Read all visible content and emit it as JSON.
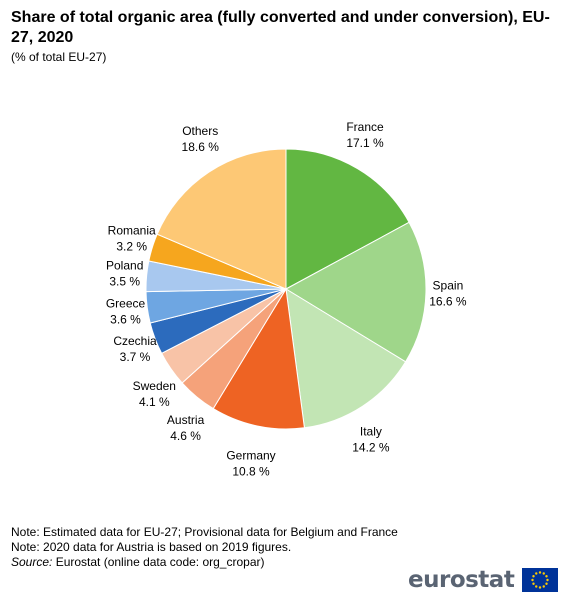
{
  "header": {
    "title": "Share of total organic area (fully converted and under conversion), EU-27, 2020",
    "subtitle": "(% of total EU-27)"
  },
  "chart_data": {
    "type": "pie",
    "title": "Share of total organic area (fully converted and under conversion), EU-27, 2020",
    "subtitle": "(% of total EU-27)",
    "start_angle_deg": 0,
    "direction": "clockwise",
    "slices": [
      {
        "label": "France",
        "value": 17.1,
        "value_label": "17.1 %",
        "color": "#62b742"
      },
      {
        "label": "Spain",
        "value": 16.6,
        "value_label": "16.6 %",
        "color": "#9fd68a"
      },
      {
        "label": "Italy",
        "value": 14.2,
        "value_label": "14.2 %",
        "color": "#c2e5b4"
      },
      {
        "label": "Germany",
        "value": 10.8,
        "value_label": "10.8 %",
        "color": "#ee6323"
      },
      {
        "label": "Austria",
        "value": 4.6,
        "value_label": "4.6 %",
        "color": "#f5a27a"
      },
      {
        "label": "Sweden",
        "value": 4.1,
        "value_label": "4.1 %",
        "color": "#f8c3a7"
      },
      {
        "label": "Czechia",
        "value": 3.7,
        "value_label": "3.7 %",
        "color": "#2c6bbd"
      },
      {
        "label": "Greece",
        "value": 3.6,
        "value_label": "3.6 %",
        "color": "#6ea6e2"
      },
      {
        "label": "Poland",
        "value": 3.5,
        "value_label": "3.5 %",
        "color": "#a8c8ef"
      },
      {
        "label": "Romania",
        "value": 3.2,
        "value_label": "3.2 %",
        "color": "#f6a61e"
      },
      {
        "label": "Others",
        "value": 18.6,
        "value_label": "18.6 %",
        "color": "#fdc875"
      }
    ]
  },
  "notes": {
    "note1": "Note: Estimated data for EU-27; Provisional data for Belgium and France",
    "note2": "Note: 2020 data for Austria is based on 2019 figures.",
    "source_label": "Source:",
    "source_text": " Eurostat (online data code: org_cropar)"
  },
  "brand": {
    "name": "eurostat",
    "flag_color": "#003399",
    "star_color": "#ffcc00"
  }
}
